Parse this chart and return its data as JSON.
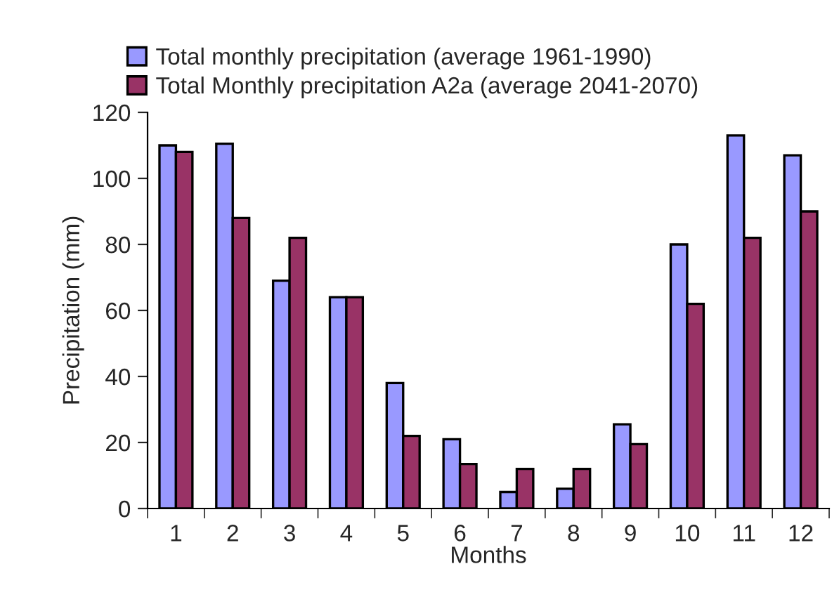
{
  "chart_data": {
    "type": "bar",
    "xlabel": "Months",
    "ylabel": "Precipitation (mm)",
    "categories": [
      "1",
      "2",
      "3",
      "4",
      "5",
      "6",
      "7",
      "8",
      "9",
      "10",
      "11",
      "12"
    ],
    "series": [
      {
        "name": "Total monthly precipitation (average 1961-1990)",
        "color": "#9999ff",
        "values": [
          110,
          110.5,
          69,
          64,
          38,
          21,
          5,
          6,
          25.5,
          80,
          113,
          107
        ]
      },
      {
        "name": "Total Monthly precipitation A2a (average 2041-2070)",
        "color": "#993366",
        "values": [
          108,
          88,
          82,
          64,
          22,
          13.5,
          12,
          12,
          19.5,
          62,
          82,
          90
        ]
      }
    ],
    "ylim": [
      0,
      120
    ],
    "yticks": [
      0,
      20,
      40,
      60,
      80,
      100,
      120
    ],
    "grid": false,
    "legend": "top"
  }
}
